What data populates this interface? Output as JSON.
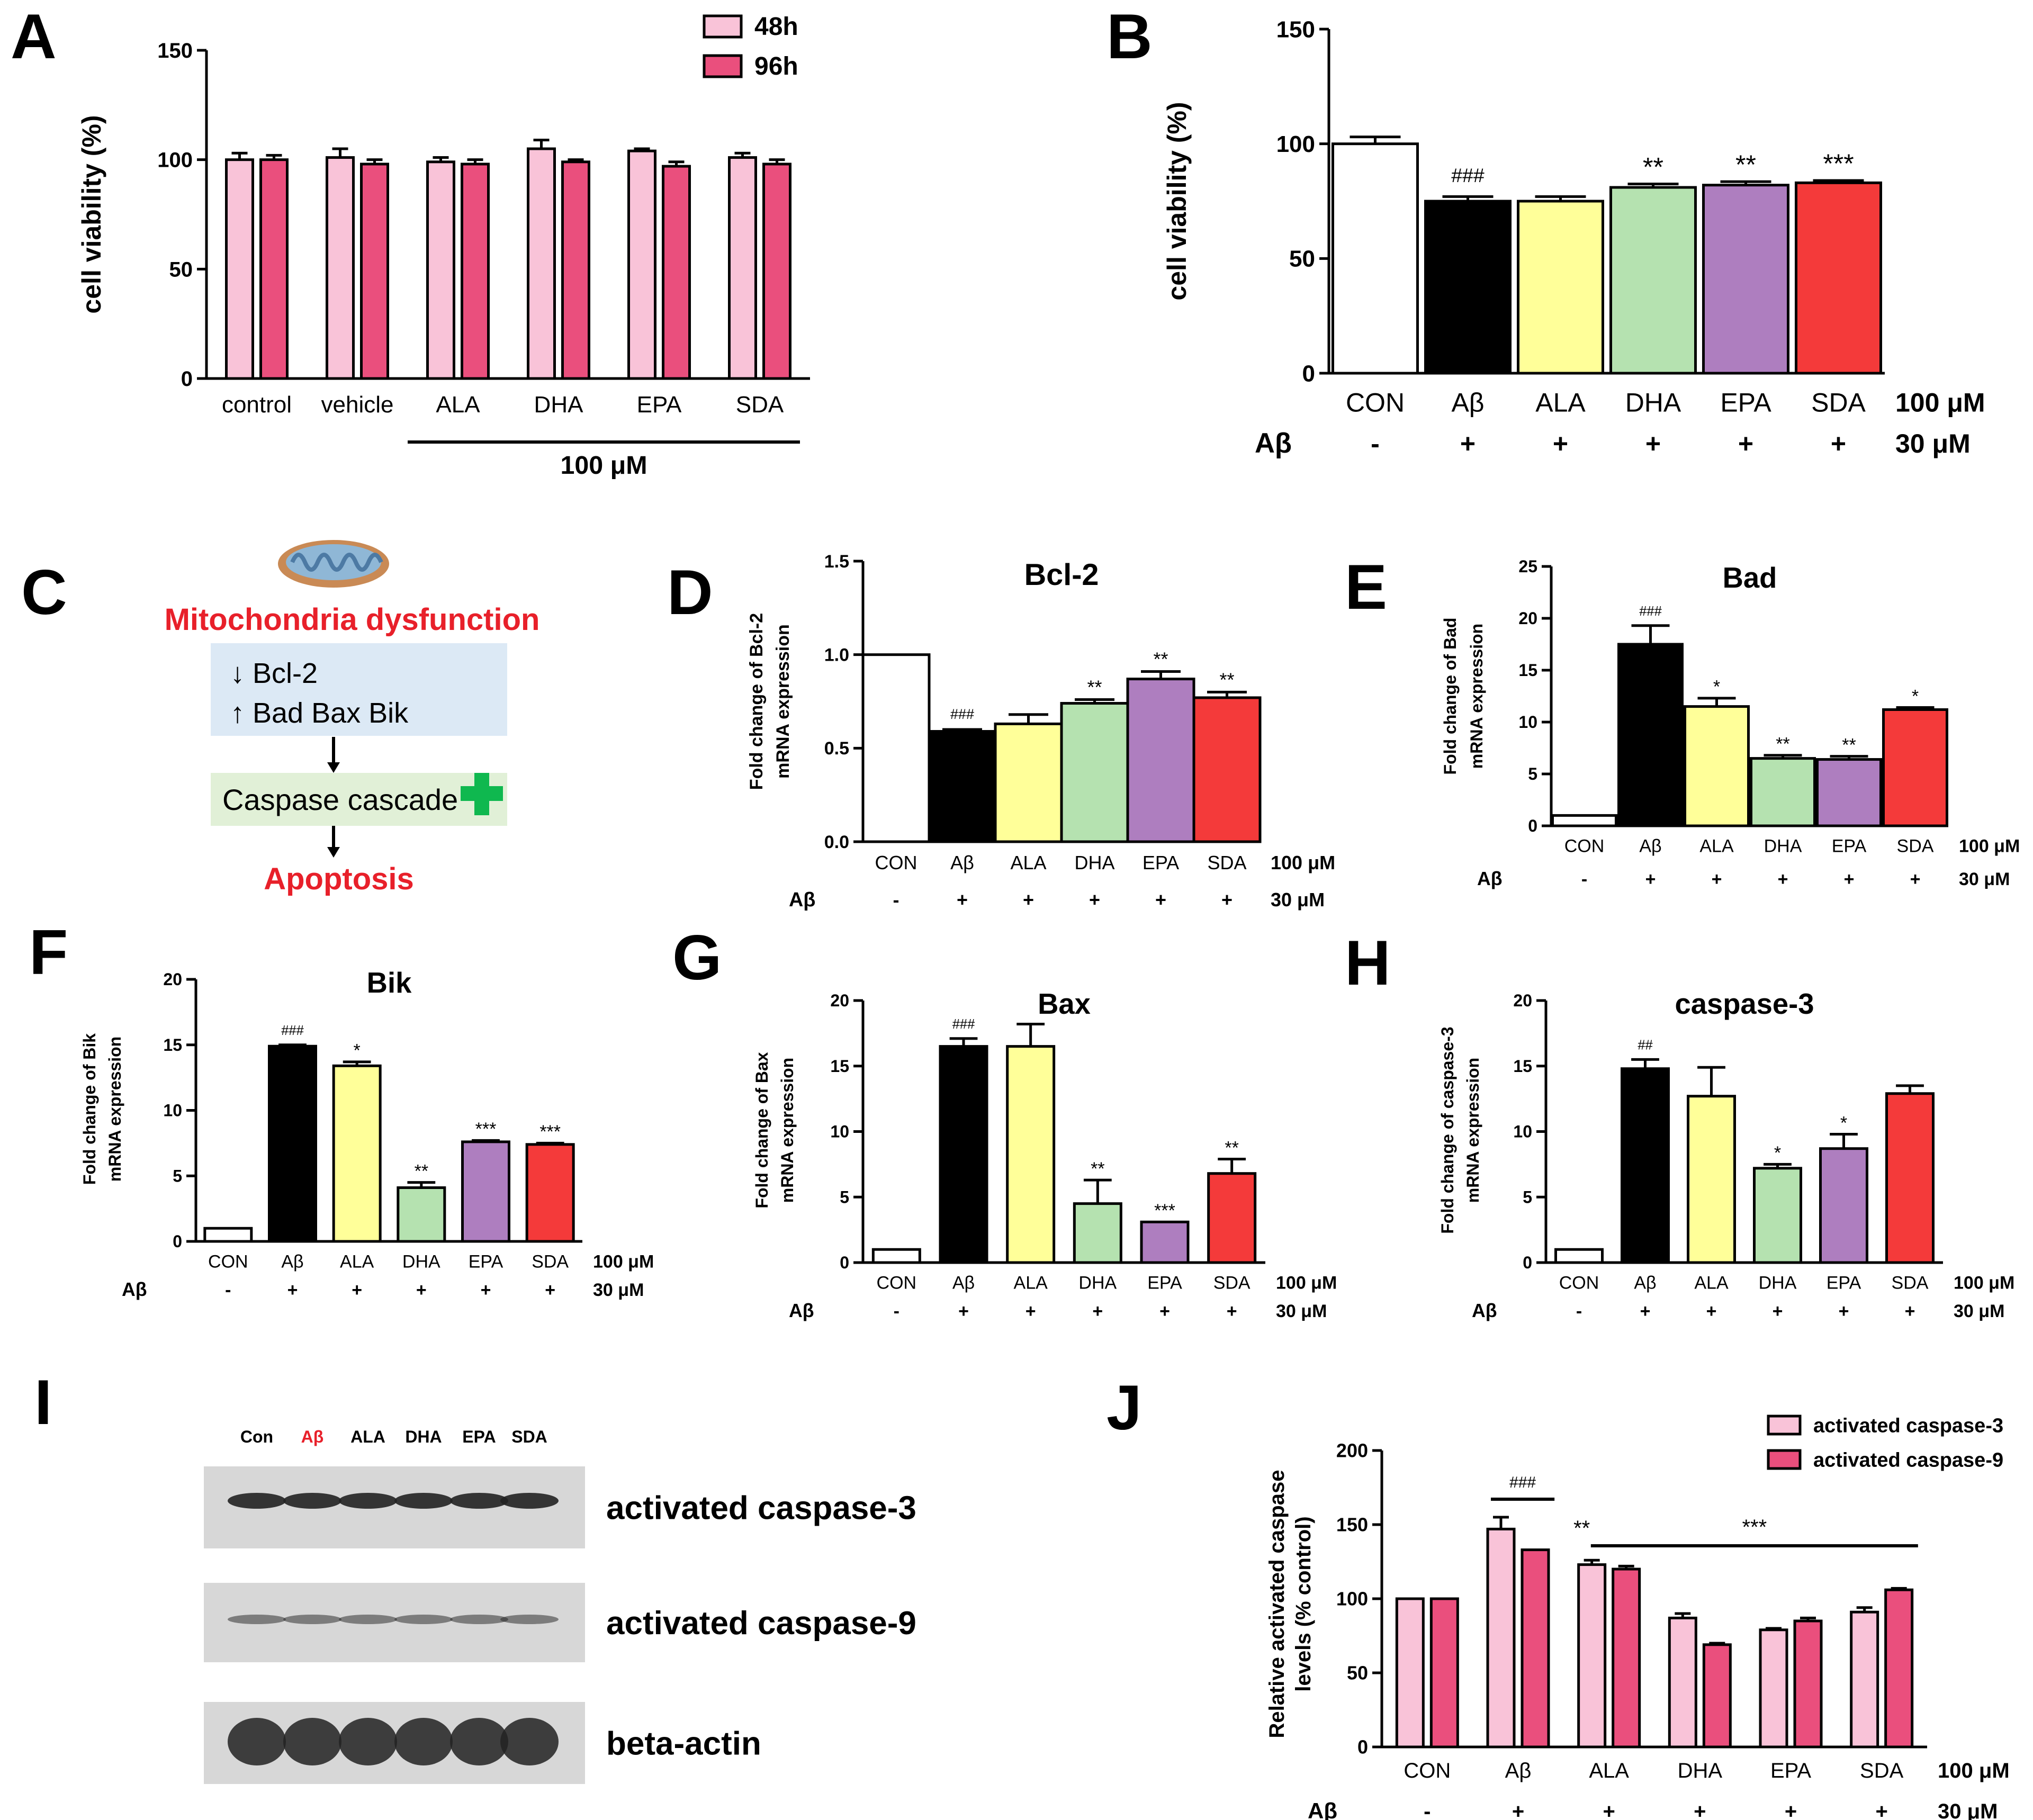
{
  "palette": {
    "light_pink": "#f9c3d8",
    "pink": "#ea4f7d",
    "white": "#ffffff",
    "black": "#000000",
    "yellow": "#ffff99",
    "green": "#b5e2b0",
    "purple": "#ae7ebf",
    "red": "#f43a3a",
    "accent_red": "#e8202a",
    "caspase_green": "#0fb84f",
    "box_blue": "#dce9f5",
    "box_green": "#e1f0d7"
  },
  "panel_labels": {
    "A": "A",
    "B": "B",
    "C": "C",
    "D": "D",
    "E": "E",
    "F": "F",
    "G": "G",
    "H": "H",
    "I": "I",
    "J": "J"
  },
  "panelC": {
    "title": "Mitochondria dysfunction",
    "line1": "↓  Bcl-2",
    "line2": "↑  Bad   Bax   Bik",
    "cascade": "Caspase cascade",
    "outcome": "Apoptosis",
    "icon": "mitochondria-icon"
  },
  "panelI": {
    "lanes": [
      "Con",
      "Aβ",
      "ALA",
      "DHA",
      "EPA",
      "SDA"
    ],
    "bands": [
      "activated caspase-3",
      "activated caspase-9",
      "beta-actin"
    ]
  },
  "chart_data": [
    {
      "id": "A",
      "type": "bar",
      "categories": [
        "control",
        "vehicle",
        "ALA",
        "DHA",
        "EPA",
        "SDA"
      ],
      "series": [
        {
          "name": "48h",
          "color": "#f9c3d8",
          "values": [
            100,
            101,
            99,
            105,
            104,
            101
          ],
          "errors": [
            3,
            4,
            2,
            4,
            1,
            2
          ]
        },
        {
          "name": "96h",
          "color": "#ea4f7d",
          "values": [
            100,
            98,
            98,
            99,
            97,
            98
          ],
          "errors": [
            2,
            2,
            2,
            1,
            2,
            2
          ]
        }
      ],
      "ylabel": "cell viability (%)",
      "yticks": [
        0,
        50,
        100,
        150
      ],
      "ylim": [
        0,
        150
      ],
      "bracket_label": "100 μM",
      "bracket_from": 2,
      "bracket_to": 5
    },
    {
      "id": "B",
      "type": "bar",
      "categories": [
        "CON",
        "Aβ",
        "ALA",
        "DHA",
        "EPA",
        "SDA"
      ],
      "colors": [
        "#ffffff",
        "#000000",
        "#ffff99",
        "#b5e2b0",
        "#ae7ebf",
        "#f43a3a"
      ],
      "values": [
        100,
        75,
        75,
        81,
        82,
        83
      ],
      "errors": [
        3,
        2,
        2,
        1.5,
        1.5,
        1
      ],
      "annotations": [
        "",
        "###",
        "",
        "**",
        "**",
        "***"
      ],
      "ylabel": "cell viability (%)",
      "yticks": [
        0,
        50,
        100,
        150
      ],
      "ylim": [
        0,
        150
      ],
      "treatment_row_label": "Aβ",
      "treatment_signs": [
        "-",
        "+",
        "+",
        "+",
        "+",
        "+"
      ],
      "unit_categories": "100 μM",
      "unit_treatment": "30 μM"
    },
    {
      "id": "D",
      "type": "bar",
      "title": "Bcl-2",
      "categories": [
        "CON",
        "Aβ",
        "ALA",
        "DHA",
        "EPA",
        "SDA"
      ],
      "colors": [
        "#ffffff",
        "#000000",
        "#ffff99",
        "#b5e2b0",
        "#ae7ebf",
        "#f43a3a"
      ],
      "values": [
        1.0,
        0.59,
        0.63,
        0.74,
        0.87,
        0.77
      ],
      "errors": [
        0,
        0.01,
        0.05,
        0.02,
        0.04,
        0.03
      ],
      "annotations": [
        "",
        "###",
        "",
        "**",
        "**",
        "**"
      ],
      "ylabel_lines": [
        "Fold change of Bcl-2",
        "mRNA expression"
      ],
      "yticks": [
        0.0,
        0.5,
        1.0,
        1.5
      ],
      "ytick_labels": [
        "0.0",
        "0.5",
        "1.0",
        "1.5"
      ],
      "ylim": [
        0,
        1.5
      ],
      "treatment_row_label": "Aβ",
      "treatment_signs": [
        "-",
        "+",
        "+",
        "+",
        "+",
        "+"
      ],
      "unit_categories": "100 μM",
      "unit_treatment": "30 μM"
    },
    {
      "id": "E",
      "type": "bar",
      "title": "Bad",
      "categories": [
        "CON",
        "Aβ",
        "ALA",
        "DHA",
        "EPA",
        "SDA"
      ],
      "colors": [
        "#ffffff",
        "#000000",
        "#ffff99",
        "#b5e2b0",
        "#ae7ebf",
        "#f43a3a"
      ],
      "values": [
        1,
        17.5,
        11.5,
        6.5,
        6.4,
        11.2
      ],
      "errors": [
        0,
        1.8,
        0.8,
        0.3,
        0.3,
        0.2
      ],
      "annotations": [
        "",
        "###",
        "*",
        "**",
        "**",
        "*"
      ],
      "ylabel_lines": [
        "Fold change of Bad",
        "mRNA expression"
      ],
      "yticks": [
        0,
        5,
        10,
        15,
        20,
        25
      ],
      "ylim": [
        0,
        25
      ],
      "treatment_row_label": "Aβ",
      "treatment_signs": [
        "-",
        "+",
        "+",
        "+",
        "+",
        "+"
      ],
      "unit_categories": "100 μM",
      "unit_treatment": "30 μM"
    },
    {
      "id": "F",
      "type": "bar",
      "title": "Bik",
      "categories": [
        "CON",
        "Aβ",
        "ALA",
        "DHA",
        "EPA",
        "SDA"
      ],
      "colors": [
        "#ffffff",
        "#000000",
        "#ffff99",
        "#b5e2b0",
        "#ae7ebf",
        "#f43a3a"
      ],
      "values": [
        1,
        14.9,
        13.4,
        4.1,
        7.6,
        7.4
      ],
      "errors": [
        0,
        0.1,
        0.3,
        0.4,
        0.1,
        0.1
      ],
      "annotations": [
        "",
        "###",
        "*",
        "**",
        "***",
        "***"
      ],
      "ylabel_lines": [
        "Fold change of Bik",
        "mRNA expression"
      ],
      "yticks": [
        0,
        5,
        10,
        15,
        20
      ],
      "ylim": [
        0,
        20
      ],
      "treatment_row_label": "Aβ",
      "treatment_signs": [
        "-",
        "+",
        "+",
        "+",
        "+",
        "+"
      ],
      "unit_categories": "100 μM",
      "unit_treatment": "30 μM"
    },
    {
      "id": "G",
      "type": "bar",
      "title": "Bax",
      "categories": [
        "CON",
        "Aβ",
        "ALA",
        "DHA",
        "EPA",
        "SDA"
      ],
      "colors": [
        "#ffffff",
        "#000000",
        "#ffff99",
        "#b5e2b0",
        "#ae7ebf",
        "#f43a3a"
      ],
      "values": [
        1,
        16.5,
        16.5,
        4.5,
        3.1,
        6.8
      ],
      "errors": [
        0,
        0.6,
        1.7,
        1.8,
        0,
        1.1
      ],
      "annotations": [
        "",
        "###",
        "",
        "**",
        "***",
        "**"
      ],
      "ylabel_lines": [
        "Fold change of Bax",
        "mRNA expression"
      ],
      "yticks": [
        0,
        5,
        10,
        15,
        20
      ],
      "ylim": [
        0,
        20
      ],
      "treatment_row_label": "Aβ",
      "treatment_signs": [
        "-",
        "+",
        "+",
        "+",
        "+",
        "+"
      ],
      "unit_categories": "100 μM",
      "unit_treatment": "30 μM"
    },
    {
      "id": "H",
      "type": "bar",
      "title": "caspase-3",
      "categories": [
        "CON",
        "Aβ",
        "ALA",
        "DHA",
        "EPA",
        "SDA"
      ],
      "colors": [
        "#ffffff",
        "#000000",
        "#ffff99",
        "#b5e2b0",
        "#ae7ebf",
        "#f43a3a"
      ],
      "values": [
        1,
        14.8,
        12.7,
        7.2,
        8.7,
        12.9
      ],
      "errors": [
        0,
        0.7,
        2.2,
        0.3,
        1.1,
        0.6
      ],
      "annotations": [
        "",
        "##",
        "",
        "*",
        "*",
        ""
      ],
      "ylabel_lines": [
        "Fold change of caspase-3",
        "mRNA expression"
      ],
      "yticks": [
        0,
        5,
        10,
        15,
        20
      ],
      "ylim": [
        0,
        20
      ],
      "treatment_row_label": "Aβ",
      "treatment_signs": [
        "-",
        "+",
        "+",
        "+",
        "+",
        "+"
      ],
      "unit_categories": "100 μM",
      "unit_treatment": "30 μM"
    },
    {
      "id": "J",
      "type": "bar",
      "categories": [
        "CON",
        "Aβ",
        "ALA",
        "DHA",
        "EPA",
        "SDA"
      ],
      "series": [
        {
          "name": "activated caspase-3",
          "color": "#f9c3d8",
          "values": [
            100,
            147,
            123,
            87,
            79,
            91
          ],
          "errors": [
            0,
            8,
            3,
            3,
            1,
            3
          ]
        },
        {
          "name": "activated caspase-9",
          "color": "#ea4f7d",
          "values": [
            100,
            133,
            120,
            69,
            85,
            106
          ],
          "errors": [
            0,
            0,
            2,
            1,
            2,
            1
          ]
        }
      ],
      "ylabel_lines": [
        "Relative activated caspase",
        "levels (% control)"
      ],
      "yticks": [
        0,
        50,
        100,
        150,
        200
      ],
      "ylim": [
        0,
        200
      ],
      "treatment_row_label": "Aβ",
      "treatment_signs": [
        "-",
        "+",
        "+",
        "+",
        "+",
        "+"
      ],
      "unit_categories": "100 μM",
      "unit_treatment": "30 μM",
      "bracket_annotations": [
        {
          "label": "###",
          "from": 1,
          "to": 1
        },
        {
          "label": "**",
          "from": 2,
          "to": 2,
          "no_line": true
        },
        {
          "label": "***",
          "from": 2.1,
          "to": 5
        }
      ]
    }
  ]
}
